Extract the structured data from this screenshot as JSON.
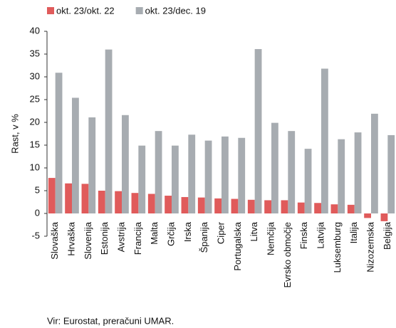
{
  "chart_data": {
    "type": "bar",
    "y_label": "Rast, v %",
    "source": "Vir: Eurostat, preračuni UMAR.",
    "categories": [
      "Slovaška",
      "Hrvaška",
      "Slovenija",
      "Estonija",
      "Avstrija",
      "Francija",
      "Malta",
      "Grčija",
      "Irska",
      "Španija",
      "Ciper",
      "Portugalska",
      "Litva",
      "Nemčija",
      "Evrsko območje",
      "Finska",
      "Latvija",
      "Luksemburg",
      "Italija",
      "Nizozemska",
      "Belgija"
    ],
    "series": [
      {
        "name": "okt. 23/okt. 22",
        "color": "#e05b5b",
        "values": [
          7.8,
          6.6,
          6.5,
          5.0,
          4.9,
          4.5,
          4.3,
          3.9,
          3.6,
          3.5,
          3.3,
          3.2,
          3.0,
          2.9,
          2.9,
          2.4,
          2.3,
          2.0,
          1.9,
          -1.0,
          -1.7
        ]
      },
      {
        "name": "okt. 23/dec. 19",
        "color": "#a7acb1",
        "values": [
          30.9,
          25.4,
          21.1,
          36.0,
          21.6,
          14.9,
          18.1,
          14.9,
          17.3,
          16.0,
          16.9,
          16.6,
          36.1,
          19.9,
          18.1,
          14.2,
          31.8,
          16.3,
          17.8,
          21.9,
          17.2
        ]
      }
    ],
    "ylim": [
      -5,
      40
    ],
    "yticks": [
      -5,
      0,
      5,
      10,
      15,
      20,
      25,
      30,
      35,
      40
    ],
    "legend": "top-left"
  }
}
